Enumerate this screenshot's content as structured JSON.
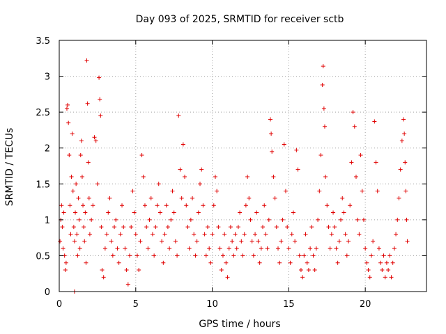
{
  "chart_data": {
    "type": "scatter",
    "title": "Day 093 of 2025, SRMTID for receiver sctb",
    "xlabel": "GPS time / hours",
    "ylabel": "SRMTID / TECUs",
    "xlim": [
      0,
      24
    ],
    "ylim": [
      0,
      3.5
    ],
    "xticks": [
      0,
      5,
      10,
      15,
      20
    ],
    "xtick_labels": [
      "0",
      "5",
      "10",
      "15",
      "20"
    ],
    "yticks": [
      0,
      0.5,
      1,
      1.5,
      2,
      2.5,
      3,
      3.5
    ],
    "ytick_labels": [
      "0",
      "0.5",
      "1",
      "1.5",
      "2",
      "2.5",
      "3",
      "3.5"
    ],
    "grid": true,
    "series": [
      {
        "name": "SRMTID",
        "marker": "+",
        "color": "#e00000",
        "points": [
          [
            0.05,
            0.7
          ],
          [
            0.1,
            1.0
          ],
          [
            0.15,
            1.2
          ],
          [
            0.2,
            0.9
          ],
          [
            0.25,
            0.6
          ],
          [
            0.3,
            1.1
          ],
          [
            0.35,
            0.5
          ],
          [
            0.4,
            0.3
          ],
          [
            0.45,
            0.4
          ],
          [
            0.5,
            2.55
          ],
          [
            0.55,
            2.6
          ],
          [
            0.6,
            2.35
          ],
          [
            0.65,
            1.9
          ],
          [
            0.7,
            1.2
          ],
          [
            0.75,
            0.8
          ],
          [
            0.8,
            1.6
          ],
          [
            0.85,
            2.2
          ],
          [
            0.9,
            1.4
          ],
          [
            0.95,
            0.9
          ],
          [
            1.0,
            0.7
          ],
          [
            1.05,
            1.1
          ],
          [
            1.1,
            1.5
          ],
          [
            1.15,
            0.8
          ],
          [
            1.2,
            0.5
          ],
          [
            1.25,
            1.3
          ],
          [
            1.3,
            1.0
          ],
          [
            1.35,
            0.6
          ],
          [
            1.4,
            1.9
          ],
          [
            1.45,
            2.1
          ],
          [
            1.5,
            1.6
          ],
          [
            1.55,
            1.2
          ],
          [
            1.6,
            0.9
          ],
          [
            1.65,
            0.7
          ],
          [
            1.7,
            1.1
          ],
          [
            1.75,
            0.4
          ],
          [
            1.8,
            3.22
          ],
          [
            1.85,
            2.62
          ],
          [
            1.9,
            1.8
          ],
          [
            1.95,
            1.3
          ],
          [
            2.0,
            0.8
          ],
          [
            2.1,
            1.0
          ],
          [
            2.2,
            1.2
          ],
          [
            2.3,
            2.15
          ],
          [
            2.4,
            2.1
          ],
          [
            2.5,
            1.5
          ],
          [
            2.6,
            2.98
          ],
          [
            2.65,
            2.68
          ],
          [
            2.7,
            2.45
          ],
          [
            2.75,
            0.9
          ],
          [
            2.8,
            0.3
          ],
          [
            2.9,
            0.2
          ],
          [
            3.0,
            0.6
          ],
          [
            3.1,
            0.8
          ],
          [
            3.2,
            1.1
          ],
          [
            3.3,
            1.3
          ],
          [
            3.4,
            0.7
          ],
          [
            3.5,
            0.5
          ],
          [
            3.6,
            0.9
          ],
          [
            3.7,
            1.0
          ],
          [
            3.8,
            0.6
          ],
          [
            3.9,
            0.4
          ],
          [
            4.0,
            0.8
          ],
          [
            4.1,
            1.2
          ],
          [
            4.2,
            0.9
          ],
          [
            4.3,
            0.6
          ],
          [
            4.4,
            0.3
          ],
          [
            4.5,
            0.1
          ],
          [
            4.6,
            0.5
          ],
          [
            4.7,
            0.9
          ],
          [
            4.8,
            1.4
          ],
          [
            4.9,
            1.1
          ],
          [
            5.0,
            0.8
          ],
          [
            5.1,
            0.5
          ],
          [
            5.2,
            0.3
          ],
          [
            5.3,
            0.7
          ],
          [
            5.4,
            1.9
          ],
          [
            5.5,
            1.6
          ],
          [
            5.6,
            1.2
          ],
          [
            5.7,
            0.9
          ],
          [
            5.8,
            0.6
          ],
          [
            5.9,
            1.0
          ],
          [
            6.0,
            1.3
          ],
          [
            6.1,
            0.8
          ],
          [
            6.2,
            0.5
          ],
          [
            6.3,
            0.9
          ],
          [
            6.4,
            1.2
          ],
          [
            6.5,
            1.5
          ],
          [
            6.6,
            1.1
          ],
          [
            6.7,
            0.7
          ],
          [
            6.8,
            0.4
          ],
          [
            6.9,
            0.8
          ],
          [
            7.0,
            1.2
          ],
          [
            7.1,
            0.9
          ],
          [
            7.2,
            0.6
          ],
          [
            7.3,
            1.0
          ],
          [
            7.4,
            1.4
          ],
          [
            7.5,
            1.1
          ],
          [
            7.6,
            0.7
          ],
          [
            7.7,
            0.5
          ],
          [
            7.8,
            2.45
          ],
          [
            7.9,
            1.7
          ],
          [
            8.0,
            1.3
          ],
          [
            8.1,
            2.05
          ],
          [
            8.2,
            1.6
          ],
          [
            8.3,
            1.2
          ],
          [
            8.4,
            0.9
          ],
          [
            8.5,
            0.6
          ],
          [
            8.6,
            1.0
          ],
          [
            8.7,
            1.3
          ],
          [
            8.8,
            0.8
          ],
          [
            8.9,
            0.5
          ],
          [
            9.0,
            0.7
          ],
          [
            9.1,
            1.1
          ],
          [
            9.2,
            1.5
          ],
          [
            9.3,
            1.7
          ],
          [
            9.4,
            1.2
          ],
          [
            9.5,
            0.8
          ],
          [
            9.6,
            0.5
          ],
          [
            9.7,
            0.9
          ],
          [
            9.8,
            0.6
          ],
          [
            9.9,
            0.4
          ],
          [
            10.0,
            0.8
          ],
          [
            10.1,
            1.2
          ],
          [
            10.2,
            1.6
          ],
          [
            10.3,
            1.4
          ],
          [
            10.4,
            0.9
          ],
          [
            10.5,
            0.6
          ],
          [
            10.6,
            0.3
          ],
          [
            10.7,
            0.5
          ],
          [
            10.8,
            0.8
          ],
          [
            10.9,
            0.4
          ],
          [
            11.0,
            0.2
          ],
          [
            11.1,
            0.6
          ],
          [
            11.2,
            0.9
          ],
          [
            11.3,
            0.7
          ],
          [
            11.4,
            0.5
          ],
          [
            11.5,
            0.8
          ],
          [
            11.6,
            0.6
          ],
          [
            11.7,
            0.9
          ],
          [
            11.8,
            1.1
          ],
          [
            11.9,
            0.7
          ],
          [
            12.0,
            0.5
          ],
          [
            12.1,
            0.8
          ],
          [
            12.2,
            1.2
          ],
          [
            12.3,
            1.6
          ],
          [
            12.4,
            1.3
          ],
          [
            12.5,
            1.0
          ],
          [
            12.6,
            0.7
          ],
          [
            12.7,
            0.5
          ],
          [
            12.8,
            0.8
          ],
          [
            12.9,
            1.1
          ],
          [
            13.0,
            0.7
          ],
          [
            13.1,
            0.4
          ],
          [
            13.2,
            0.6
          ],
          [
            13.3,
            0.9
          ],
          [
            13.4,
            1.2
          ],
          [
            13.5,
            0.8
          ],
          [
            13.6,
            0.6
          ],
          [
            13.7,
            1.0
          ],
          [
            13.8,
            2.4
          ],
          [
            13.85,
            2.2
          ],
          [
            13.9,
            1.95
          ],
          [
            14.0,
            1.6
          ],
          [
            14.1,
            1.3
          ],
          [
            14.2,
            0.9
          ],
          [
            14.3,
            0.6
          ],
          [
            14.4,
            0.4
          ],
          [
            14.5,
            0.7
          ],
          [
            14.6,
            1.0
          ],
          [
            14.7,
            2.05
          ],
          [
            14.8,
            1.4
          ],
          [
            14.9,
            0.9
          ],
          [
            15.0,
            0.6
          ],
          [
            15.1,
            0.4
          ],
          [
            15.2,
            0.8
          ],
          [
            15.3,
            1.1
          ],
          [
            15.4,
            0.7
          ],
          [
            15.5,
            1.97
          ],
          [
            15.6,
            1.7
          ],
          [
            15.7,
            0.5
          ],
          [
            15.8,
            0.3
          ],
          [
            15.9,
            0.2
          ],
          [
            16.0,
            0.5
          ],
          [
            16.1,
            0.8
          ],
          [
            16.2,
            0.4
          ],
          [
            16.3,
            0.3
          ],
          [
            16.4,
            0.6
          ],
          [
            16.5,
            0.9
          ],
          [
            16.6,
            0.5
          ],
          [
            16.7,
            0.3
          ],
          [
            16.8,
            0.6
          ],
          [
            16.9,
            1.0
          ],
          [
            17.0,
            1.4
          ],
          [
            17.1,
            1.9
          ],
          [
            17.2,
            2.88
          ],
          [
            17.25,
            3.14
          ],
          [
            17.3,
            2.55
          ],
          [
            17.35,
            2.3
          ],
          [
            17.4,
            1.6
          ],
          [
            17.5,
            1.2
          ],
          [
            17.6,
            0.9
          ],
          [
            17.7,
            0.6
          ],
          [
            17.8,
            0.8
          ],
          [
            17.9,
            1.1
          ],
          [
            18.0,
            0.9
          ],
          [
            18.1,
            0.6
          ],
          [
            18.2,
            0.4
          ],
          [
            18.3,
            0.7
          ],
          [
            18.4,
            1.0
          ],
          [
            18.5,
            1.3
          ],
          [
            18.6,
            1.1
          ],
          [
            18.7,
            0.8
          ],
          [
            18.8,
            0.5
          ],
          [
            18.9,
            0.7
          ],
          [
            19.0,
            1.2
          ],
          [
            19.1,
            1.8
          ],
          [
            19.2,
            2.5
          ],
          [
            19.3,
            2.3
          ],
          [
            19.4,
            1.6
          ],
          [
            19.5,
            1.0
          ],
          [
            19.6,
            0.8
          ],
          [
            19.7,
            1.9
          ],
          [
            19.8,
            1.4
          ],
          [
            19.9,
            1.0
          ],
          [
            20.0,
            0.6
          ],
          [
            20.1,
            0.4
          ],
          [
            20.2,
            0.3
          ],
          [
            20.3,
            0.2
          ],
          [
            20.4,
            0.5
          ],
          [
            20.5,
            0.7
          ],
          [
            20.6,
            2.37
          ],
          [
            20.7,
            1.8
          ],
          [
            20.8,
            1.4
          ],
          [
            20.9,
            0.6
          ],
          [
            21.0,
            0.4
          ],
          [
            21.1,
            0.3
          ],
          [
            21.2,
            0.5
          ],
          [
            21.3,
            0.2
          ],
          [
            21.4,
            0.4
          ],
          [
            21.5,
            0.3
          ],
          [
            21.6,
            0.5
          ],
          [
            21.7,
            0.2
          ],
          [
            21.8,
            0.4
          ],
          [
            21.9,
            0.6
          ],
          [
            22.0,
            0.8
          ],
          [
            22.1,
            1.0
          ],
          [
            22.2,
            1.3
          ],
          [
            22.3,
            1.7
          ],
          [
            22.4,
            2.1
          ],
          [
            22.5,
            2.4
          ],
          [
            22.55,
            2.2
          ],
          [
            22.6,
            1.8
          ],
          [
            22.65,
            1.4
          ],
          [
            22.7,
            1.0
          ],
          [
            22.75,
            0.7
          ],
          [
            1.0,
            0.0
          ]
        ]
      }
    ]
  }
}
